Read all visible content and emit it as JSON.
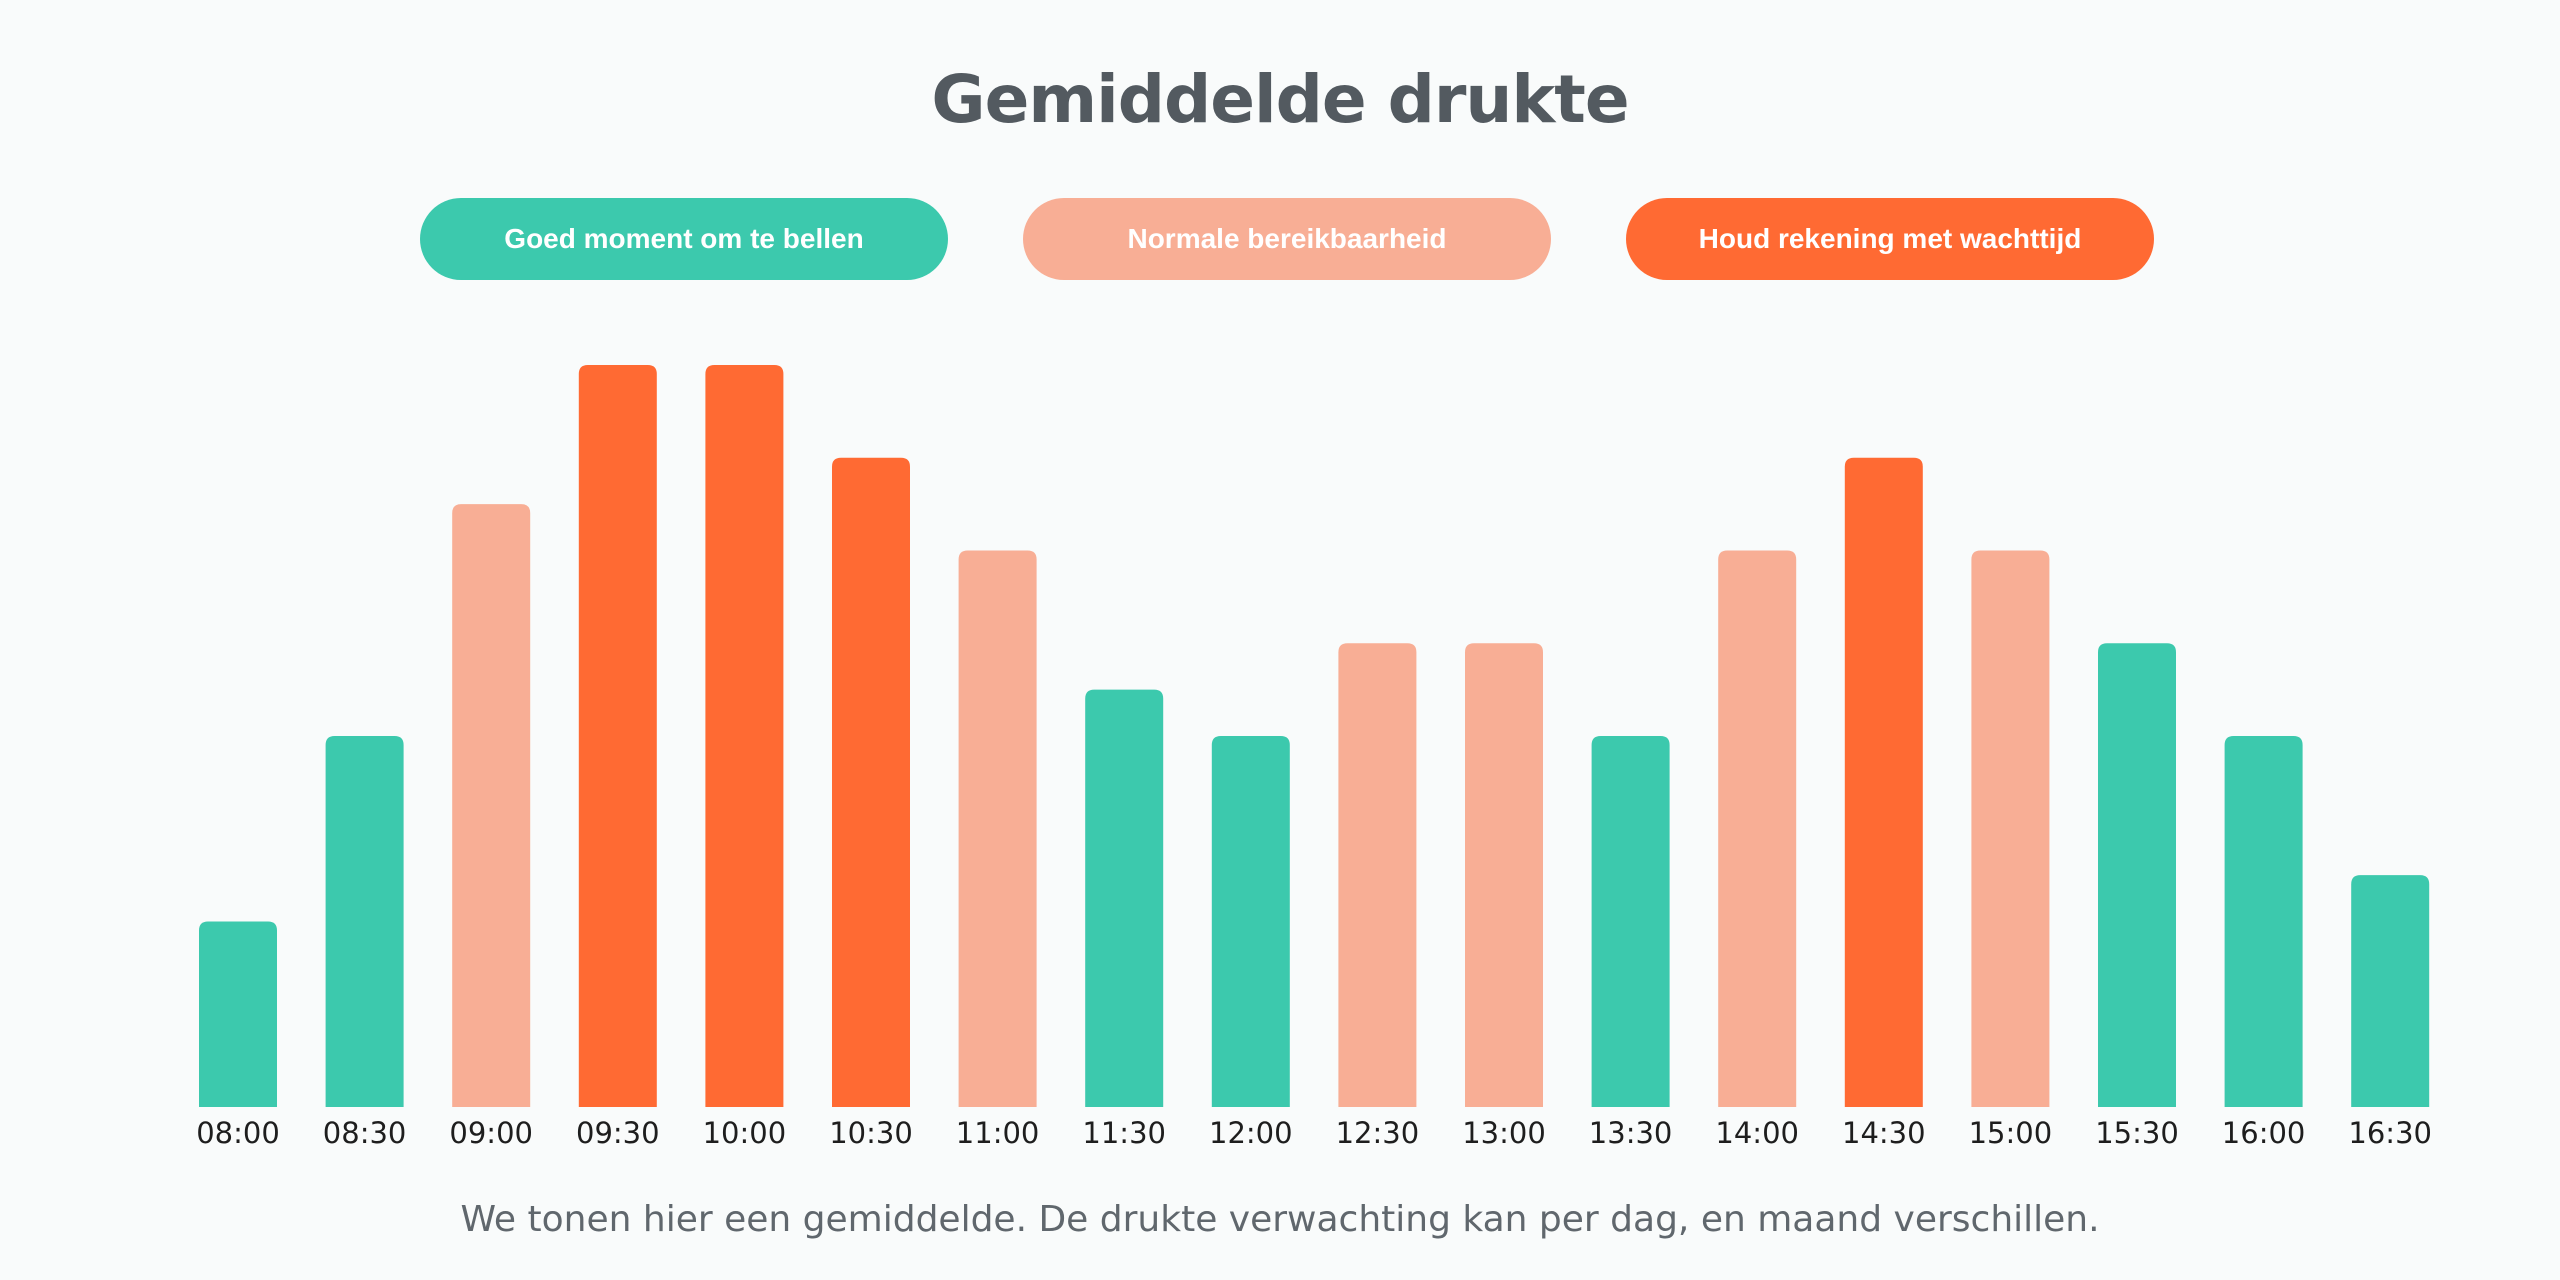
{
  "title": "Gemiddelde drukte",
  "legend": [
    {
      "label": "Goed moment om te bellen",
      "color": "#3cc9ad",
      "level": "good"
    },
    {
      "label": "Normale bereikbaarheid",
      "color": "#f8ae95",
      "level": "normal"
    },
    {
      "label": "Houd rekening met wachttijd",
      "color": "#ff6a33",
      "level": "busy"
    }
  ],
  "chart_data": {
    "type": "bar",
    "categories": [
      "08:00",
      "08:30",
      "09:00",
      "09:30",
      "10:00",
      "10:30",
      "11:00",
      "11:30",
      "12:00",
      "12:30",
      "13:00",
      "13:30",
      "14:00",
      "14:30",
      "15:00",
      "15:30",
      "16:00",
      "16:30"
    ],
    "values": [
      2,
      4,
      6.5,
      8,
      8,
      7,
      6,
      4.5,
      4,
      5,
      5,
      4,
      6,
      7,
      6,
      5,
      4,
      2.5
    ],
    "levels": [
      "good",
      "good",
      "normal",
      "busy",
      "busy",
      "busy",
      "normal",
      "good",
      "good",
      "normal",
      "normal",
      "good",
      "normal",
      "busy",
      "normal",
      "good",
      "good",
      "good"
    ],
    "ylim": [
      0,
      8
    ],
    "grid": false,
    "legend_position": "top"
  },
  "footnote": "We tonen hier een gemiddelde. De drukte verwachting kan per dag, en maand verschillen."
}
